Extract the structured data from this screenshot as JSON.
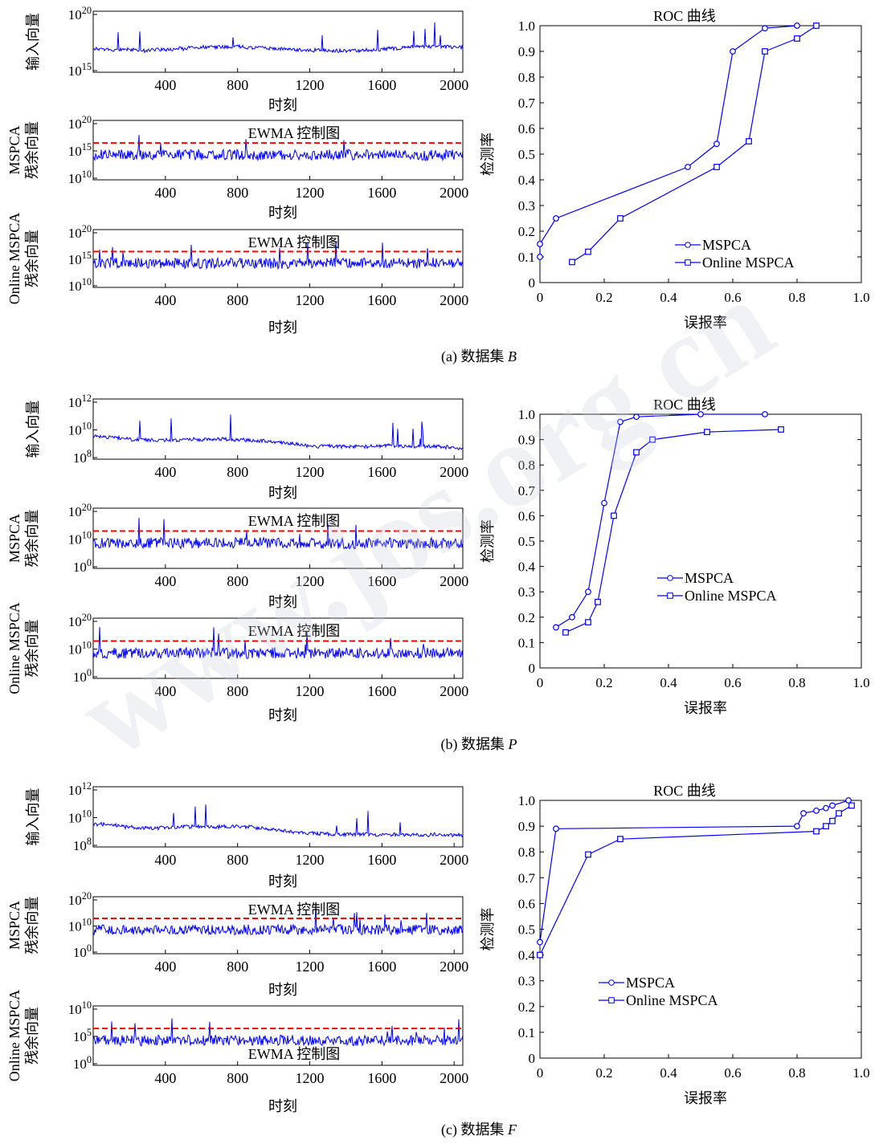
{
  "watermark": "www.jos.org.cn",
  "colors": {
    "signal": "#0000ff",
    "limit": "#ff0000",
    "axis": "#000000"
  },
  "timeseries_common": {
    "xlabel": "时刻",
    "xticks": [
      400,
      800,
      1200,
      1600,
      2000
    ],
    "xrange": [
      0,
      2048
    ],
    "control_chart_label": "EWMA 控制图"
  },
  "roc_common": {
    "title": "ROC 曲线",
    "xlabel": "误报率",
    "ylabel": "检测率",
    "xticks": [
      "0",
      "0.2",
      "0.4",
      "0.6",
      "0.8",
      "1.0"
    ],
    "yticks": [
      "0",
      "0.1",
      "0.2",
      "0.3",
      "0.4",
      "0.5",
      "0.6",
      "0.7",
      "0.8",
      "0.9",
      "1.0"
    ],
    "series_names": [
      "MSPCA",
      "Online MSPCA"
    ]
  },
  "panels": [
    {
      "caption": "(a)  数据集 ",
      "caption_var": "B",
      "timeseries": [
        {
          "ylabel": [
            "输入向量"
          ],
          "yticks": [
            "10^20",
            "10^15"
          ],
          "has_limit": false,
          "show_ewma": false,
          "show_xlabel": true
        },
        {
          "ylabel": [
            "MSPCA",
            "残余向量"
          ],
          "yticks": [
            "10^20",
            "10^15",
            "10^10"
          ],
          "has_limit": true,
          "show_ewma": true,
          "ewma_pos": "top",
          "show_xlabel": true
        },
        {
          "ylabel": [
            "Online MSPCA",
            "残余向量"
          ],
          "yticks": [
            "10^20",
            "10^15",
            "10^10"
          ],
          "has_limit": true,
          "show_ewma": true,
          "ewma_pos": "top",
          "show_xlabel": true
        }
      ]
    },
    {
      "caption": "(b)  数据集 ",
      "caption_var": "P",
      "timeseries": [
        {
          "ylabel": [
            "输入向量"
          ],
          "yticks": [
            "10^12",
            "10^10",
            "10^8"
          ],
          "has_limit": false,
          "show_ewma": false,
          "show_xlabel": true
        },
        {
          "ylabel": [
            "MSPCA",
            "残余向量"
          ],
          "yticks": [
            "10^20",
            "10^10",
            "10^0"
          ],
          "has_limit": true,
          "show_ewma": true,
          "ewma_pos": "top",
          "show_xlabel": true
        },
        {
          "ylabel": [
            "Online MSPCA",
            "残余向量"
          ],
          "yticks": [
            "10^20",
            "10^10",
            "10^0"
          ],
          "has_limit": true,
          "show_ewma": true,
          "ewma_pos": "top",
          "show_xlabel": true
        }
      ]
    },
    {
      "caption": "(c)  数据集 ",
      "caption_var": "F",
      "timeseries": [
        {
          "ylabel": [
            "输入向量"
          ],
          "yticks": [
            "10^12",
            "10^10",
            "10^8"
          ],
          "has_limit": false,
          "show_ewma": false,
          "show_xlabel": true
        },
        {
          "ylabel": [
            "MSPCA",
            "残余向量"
          ],
          "yticks": [
            "10^20",
            "10^10",
            "10^0"
          ],
          "has_limit": true,
          "show_ewma": true,
          "ewma_pos": "top",
          "show_xlabel": true
        },
        {
          "ylabel": [
            "Online MSPCA",
            "残余向量"
          ],
          "yticks": [
            "10^10",
            "10^5",
            "10^0"
          ],
          "has_limit": true,
          "show_ewma": true,
          "ewma_pos": "bottom",
          "show_xlabel": true
        }
      ]
    }
  ],
  "chart_data": [
    {
      "type": "line",
      "title": "ROC 曲线",
      "dataset": "B",
      "xlabel": "误报率",
      "ylabel": "检测率",
      "xlim": [
        0,
        1
      ],
      "ylim": [
        0,
        1
      ],
      "legend": "bottom-right",
      "series": [
        {
          "name": "MSPCA",
          "marker": "circle",
          "x": [
            0,
            0,
            0.05,
            0.46,
            0.55,
            0.6,
            0.7,
            0.8
          ],
          "y": [
            0.1,
            0.15,
            0.25,
            0.45,
            0.54,
            0.9,
            0.99,
            1.0
          ]
        },
        {
          "name": "Online MSPCA",
          "marker": "square",
          "x": [
            0.1,
            0.15,
            0.25,
            0.55,
            0.65,
            0.7,
            0.8,
            0.86
          ],
          "y": [
            0.08,
            0.12,
            0.25,
            0.45,
            0.55,
            0.9,
            0.95,
            1.0
          ]
        }
      ]
    },
    {
      "type": "line",
      "title": "ROC 曲线",
      "dataset": "P",
      "xlabel": "误报率",
      "ylabel": "检测率",
      "xlim": [
        0,
        1
      ],
      "ylim": [
        0,
        1
      ],
      "legend": "middle-right",
      "series": [
        {
          "name": "MSPCA",
          "marker": "circle",
          "x": [
            0.05,
            0.1,
            0.15,
            0.2,
            0.25,
            0.3,
            0.5,
            0.7
          ],
          "y": [
            0.16,
            0.2,
            0.3,
            0.65,
            0.97,
            0.99,
            1.0,
            1.0
          ]
        },
        {
          "name": "Online MSPCA",
          "marker": "square",
          "x": [
            0.08,
            0.15,
            0.18,
            0.23,
            0.3,
            0.35,
            0.52,
            0.75
          ],
          "y": [
            0.14,
            0.18,
            0.26,
            0.6,
            0.85,
            0.9,
            0.93,
            0.94
          ]
        }
      ]
    },
    {
      "type": "line",
      "title": "ROC 曲线",
      "dataset": "F",
      "xlabel": "误报率",
      "ylabel": "检测率",
      "xlim": [
        0,
        1
      ],
      "ylim": [
        0,
        1
      ],
      "legend": "bottom-left",
      "series": [
        {
          "name": "MSPCA",
          "marker": "circle",
          "x": [
            0,
            0.05,
            0.8,
            0.82,
            0.86,
            0.89,
            0.91,
            0.96
          ],
          "y": [
            0.45,
            0.89,
            0.9,
            0.95,
            0.96,
            0.97,
            0.98,
            1.0
          ]
        },
        {
          "name": "Online MSPCA",
          "marker": "square",
          "x": [
            0,
            0.15,
            0.25,
            0.86,
            0.89,
            0.91,
            0.93,
            0.97
          ],
          "y": [
            0.4,
            0.79,
            0.85,
            0.88,
            0.9,
            0.92,
            0.95,
            0.98
          ]
        }
      ]
    }
  ]
}
